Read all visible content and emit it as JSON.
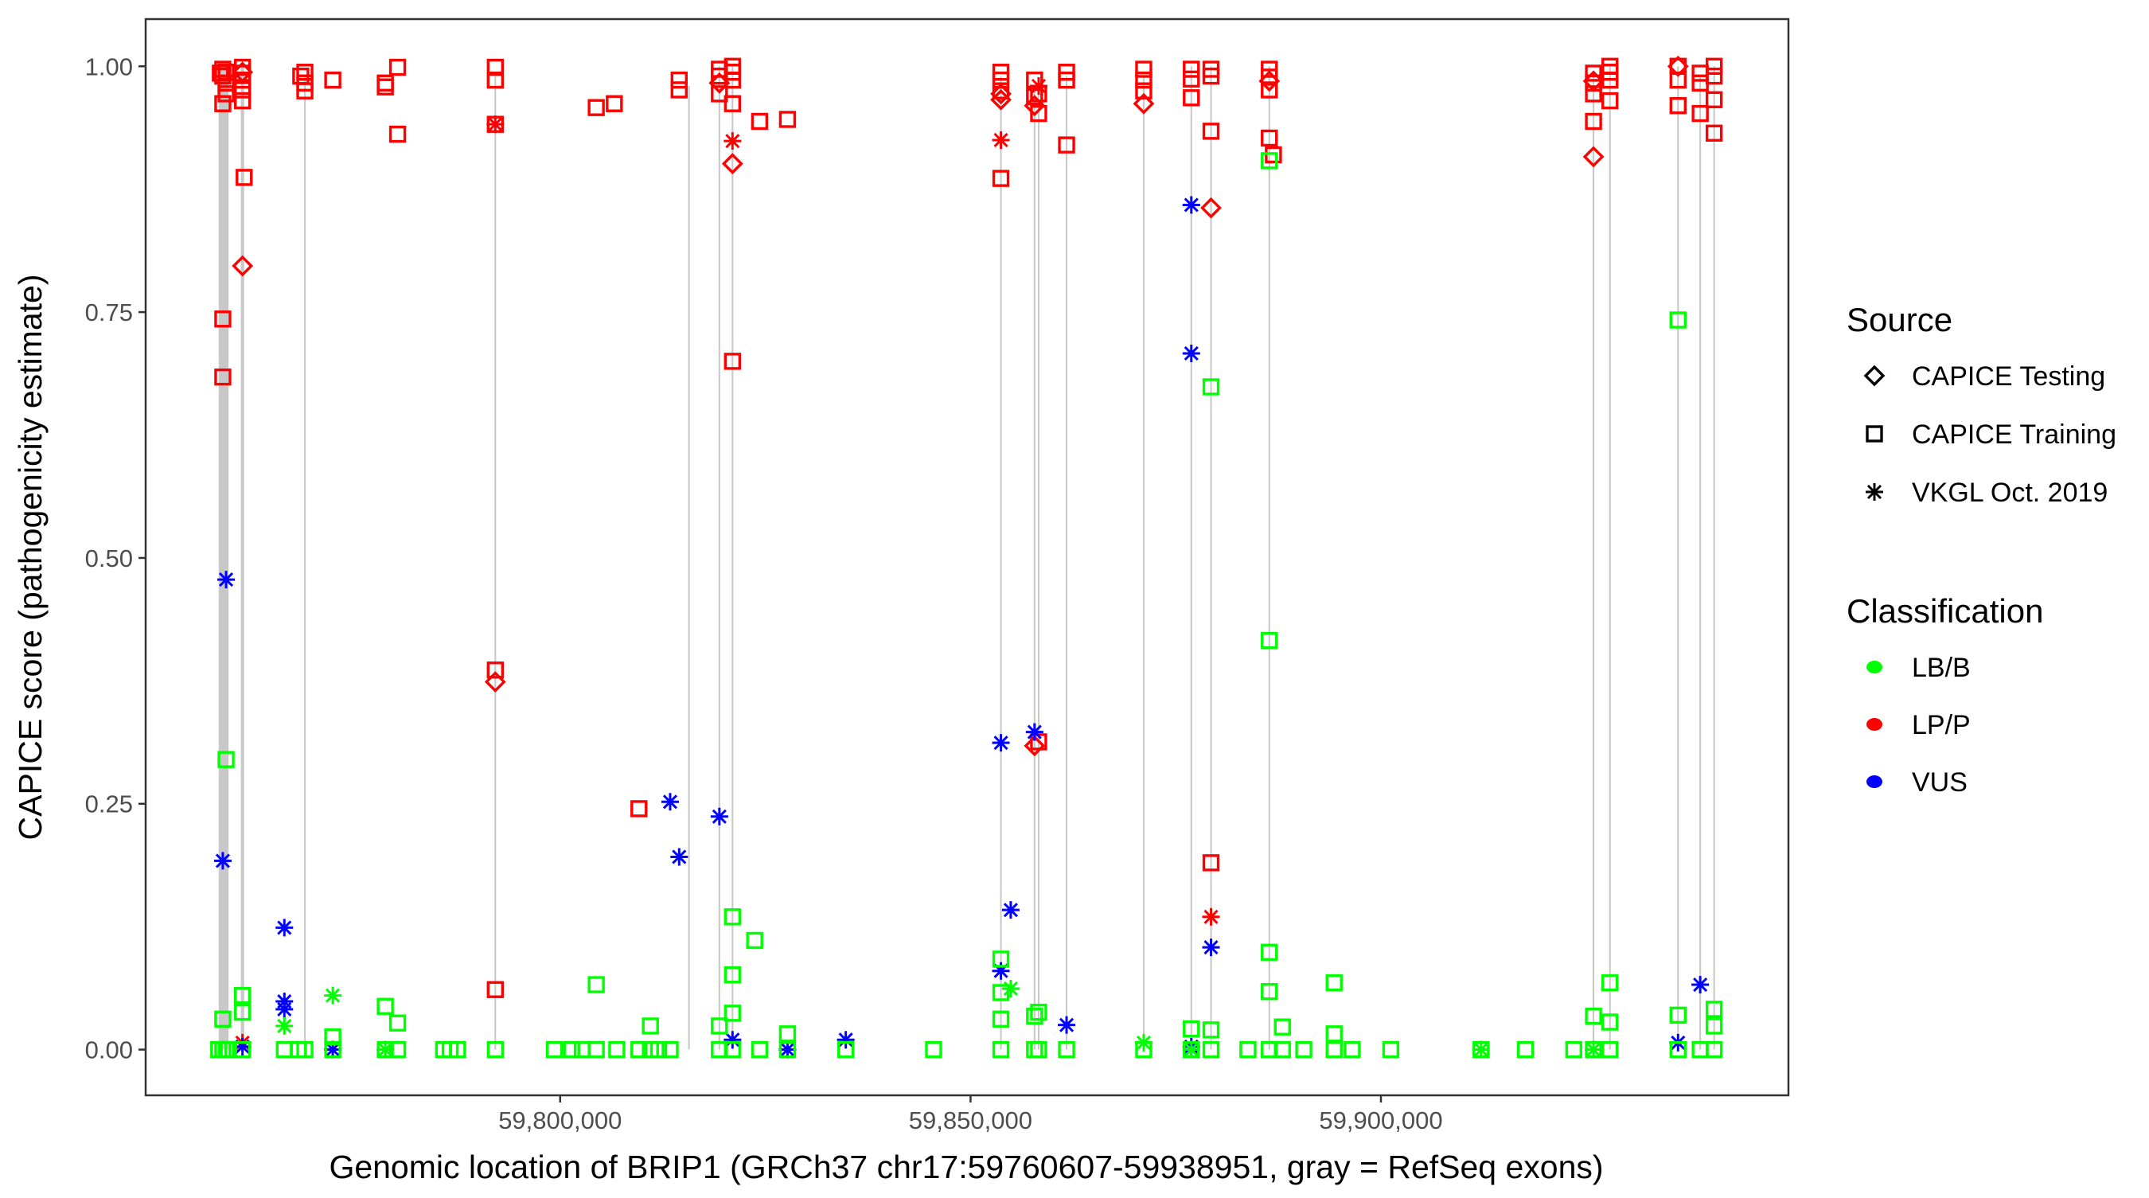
{
  "chart_data": {
    "type": "scatter",
    "title": "",
    "xlabel": "Genomic location of BRIP1 (GRCh37 chr17:59760607-59938951, gray = RefSeq exons)",
    "ylabel": "CAPICE score (pathogenicity estimate)",
    "xlim": [
      59749500,
      59949650
    ],
    "ylim": [
      -0.0465,
      1.048
    ],
    "x_ticks": [
      59800000,
      59850000,
      59900000
    ],
    "x_tick_labels": [
      "59,800,000",
      "59,850,000",
      "59,900,000"
    ],
    "y_ticks": [
      0,
      0.25,
      0.5,
      0.75,
      1.0
    ],
    "y_tick_labels": [
      "0.00",
      "0.25",
      "0.50",
      "0.75",
      "1.00"
    ],
    "grid": false,
    "legend_placement": "right",
    "legend": {
      "source_title": "Source",
      "sources": [
        {
          "label": "CAPICE Testing",
          "shape": "diamond"
        },
        {
          "label": "CAPICE Training",
          "shape": "square"
        },
        {
          "label": "VKGL Oct. 2019",
          "shape": "asterisk"
        }
      ],
      "class_title": "Classification",
      "classes": [
        {
          "label": "LB/B",
          "color": "#00ff00"
        },
        {
          "label": "LP/P",
          "color": "#ff0000"
        },
        {
          "label": "VUS",
          "color": "#0000ff"
        }
      ]
    },
    "exon_color": "#c8c8c8",
    "exons": [
      [
        59758400,
        59759600,
        1.0
      ],
      [
        59761100,
        59761500,
        1.0
      ],
      [
        59768800,
        59769000,
        0.99
      ],
      [
        59792000,
        59792200,
        0.99
      ],
      [
        59815600,
        59815800,
        0.98
      ],
      [
        59819300,
        59819500,
        1.0
      ],
      [
        59820900,
        59821100,
        1.0
      ],
      [
        59853600,
        59853800,
        0.99
      ],
      [
        59857700,
        59857900,
        0.98
      ],
      [
        59858200,
        59858400,
        0.98
      ],
      [
        59861600,
        59861800,
        0.99
      ],
      [
        59871000,
        59871200,
        0.99
      ],
      [
        59876800,
        59877000,
        1.0
      ],
      [
        59879200,
        59879400,
        1.0
      ],
      [
        59886300,
        59886500,
        1.0
      ],
      [
        59925800,
        59926000,
        0.99
      ],
      [
        59927800,
        59928000,
        1.0
      ],
      [
        59936100,
        59936300,
        1.0
      ],
      [
        59938800,
        59939000,
        0.99
      ],
      [
        59940500,
        59940700,
        1.0
      ]
    ],
    "series": [
      {
        "source": 1,
        "class": 1,
        "points": [
          [
            59758900,
            0.997
          ],
          [
            59759300,
            0.994
          ],
          [
            59758900,
            0.99
          ],
          [
            59759300,
            0.983
          ],
          [
            59758600,
            0.993
          ],
          [
            59759300,
            0.972
          ],
          [
            59758900,
            0.962
          ],
          [
            59758900,
            0.743
          ],
          [
            59758900,
            0.684
          ],
          [
            59761300,
            0.999
          ],
          [
            59761300,
            0.993
          ],
          [
            59761300,
            0.986
          ],
          [
            59761300,
            0.976
          ],
          [
            59761300,
            0.965
          ],
          [
            59761500,
            0.887
          ],
          [
            59768900,
            0.994
          ],
          [
            59768900,
            0.983
          ],
          [
            59768900,
            0.975
          ],
          [
            59768400,
            0.99
          ],
          [
            59772300,
            0.986
          ],
          [
            59778700,
            0.983
          ],
          [
            59778700,
            0.979
          ],
          [
            59780200,
            0.931
          ],
          [
            59780200,
            0.999
          ],
          [
            59792100,
            0.999
          ],
          [
            59792100,
            0.986
          ],
          [
            59792100,
            0.941
          ],
          [
            59792100,
            0.386
          ],
          [
            59792100,
            0.061
          ],
          [
            59804400,
            0.958
          ],
          [
            59806600,
            0.962
          ],
          [
            59809600,
            0.245
          ],
          [
            59814500,
            0.986
          ],
          [
            59814500,
            0.976
          ],
          [
            59819400,
            0.997
          ],
          [
            59819400,
            0.99
          ],
          [
            59819400,
            0.972
          ],
          [
            59821000,
            1.0
          ],
          [
            59821000,
            0.994
          ],
          [
            59821000,
            0.986
          ],
          [
            59821000,
            0.962
          ],
          [
            59821000,
            0.7
          ],
          [
            59824300,
            0.944
          ],
          [
            59827700,
            0.946
          ],
          [
            59853700,
            0.994
          ],
          [
            59853700,
            0.986
          ],
          [
            59853700,
            0.975
          ],
          [
            59853700,
            0.886
          ],
          [
            59857800,
            0.986
          ],
          [
            59857800,
            0.969
          ],
          [
            59858300,
            0.952
          ],
          [
            59858300,
            0.972
          ],
          [
            59858300,
            0.313
          ],
          [
            59861700,
            0.994
          ],
          [
            59861700,
            0.986
          ],
          [
            59861700,
            0.92
          ],
          [
            59871100,
            0.997
          ],
          [
            59871100,
            0.986
          ],
          [
            59871100,
            0.975
          ],
          [
            59876900,
            0.997
          ],
          [
            59876900,
            0.987
          ],
          [
            59876900,
            0.968
          ],
          [
            59879300,
            0.997
          ],
          [
            59879300,
            0.99
          ],
          [
            59879300,
            0.934
          ],
          [
            59879300,
            0.19
          ],
          [
            59886400,
            0.997
          ],
          [
            59886400,
            0.989
          ],
          [
            59886400,
            0.976
          ],
          [
            59886400,
            0.927
          ],
          [
            59886900,
            0.91
          ],
          [
            59925900,
            0.993
          ],
          [
            59925900,
            0.983
          ],
          [
            59925900,
            0.972
          ],
          [
            59925900,
            0.944
          ],
          [
            59927900,
            1.0
          ],
          [
            59927900,
            0.994
          ],
          [
            59927900,
            0.986
          ],
          [
            59927900,
            0.965
          ],
          [
            59936200,
            1.0
          ],
          [
            59936200,
            0.986
          ],
          [
            59936200,
            0.96
          ],
          [
            59938900,
            0.993
          ],
          [
            59938900,
            0.983
          ],
          [
            59938900,
            0.952
          ],
          [
            59940600,
            1.0
          ],
          [
            59940600,
            0.99
          ],
          [
            59940600,
            0.966
          ],
          [
            59940600,
            0.932
          ]
        ]
      },
      {
        "source": 0,
        "class": 1,
        "points": [
          [
            59761300,
            0.797
          ],
          [
            59761300,
            0.994
          ],
          [
            59792100,
            0.374
          ],
          [
            59819400,
            0.983
          ],
          [
            59821000,
            0.901
          ],
          [
            59853700,
            0.972
          ],
          [
            59853700,
            0.966
          ],
          [
            59857800,
            0.96
          ],
          [
            59857800,
            0.309
          ],
          [
            59871100,
            0.962
          ],
          [
            59879300,
            0.856
          ],
          [
            59886400,
            0.985
          ],
          [
            59925900,
            0.985
          ],
          [
            59925900,
            0.908
          ],
          [
            59936200,
            1.0
          ]
        ]
      },
      {
        "source": 2,
        "class": 1,
        "points": [
          [
            59761300,
            0.007
          ],
          [
            59792100,
            0.941
          ],
          [
            59821000,
            0.924
          ],
          [
            59853700,
            0.925
          ],
          [
            59858300,
            0.98
          ],
          [
            59879300,
            0.135
          ]
        ]
      },
      {
        "source": 2,
        "class": 2,
        "points": [
          [
            59759300,
            0.478
          ],
          [
            59758900,
            0.192
          ],
          [
            59766400,
            0.124
          ],
          [
            59766400,
            0.049
          ],
          [
            59766400,
            0.041
          ],
          [
            59772300,
            0
          ],
          [
            59813400,
            0.252
          ],
          [
            59814500,
            0.196
          ],
          [
            59819400,
            0.237
          ],
          [
            59821000,
            0.01
          ],
          [
            59827700,
            0
          ],
          [
            59834800,
            0.01
          ],
          [
            59853700,
            0.312
          ],
          [
            59853700,
            0.08
          ],
          [
            59854900,
            0.142
          ],
          [
            59857800,
            0.323
          ],
          [
            59861700,
            0.025
          ],
          [
            59876900,
            0.859
          ],
          [
            59876900,
            0.708
          ],
          [
            59876900,
            0.003
          ],
          [
            59879300,
            0.104
          ],
          [
            59936200,
            0.007
          ],
          [
            59938900,
            0.066
          ],
          [
            59761300,
            0.003
          ]
        ]
      },
      {
        "source": 1,
        "class": 0,
        "points": [
          [
            59758400,
            0
          ],
          [
            59758900,
            0
          ],
          [
            59759300,
            0
          ],
          [
            59759600,
            0
          ],
          [
            59761300,
            0
          ],
          [
            59766400,
            0
          ],
          [
            59768100,
            0
          ],
          [
            59768900,
            0
          ],
          [
            59772300,
            0
          ],
          [
            59778700,
            0
          ],
          [
            59780200,
            0
          ],
          [
            59785800,
            0
          ],
          [
            59786600,
            0
          ],
          [
            59787500,
            0
          ],
          [
            59792100,
            0
          ],
          [
            59799300,
            0
          ],
          [
            59801400,
            0
          ],
          [
            59802700,
            0
          ],
          [
            59804400,
            0
          ],
          [
            59806900,
            0
          ],
          [
            59809600,
            0
          ],
          [
            59811000,
            0
          ],
          [
            59812000,
            0
          ],
          [
            59813400,
            0
          ],
          [
            59819400,
            0
          ],
          [
            59821000,
            0
          ],
          [
            59824300,
            0
          ],
          [
            59827700,
            0
          ],
          [
            59834800,
            0
          ],
          [
            59845500,
            0
          ],
          [
            59853700,
            0
          ],
          [
            59857800,
            0
          ],
          [
            59858300,
            0
          ],
          [
            59861700,
            0
          ],
          [
            59871100,
            0
          ],
          [
            59876900,
            0
          ],
          [
            59879300,
            0
          ],
          [
            59883800,
            0
          ],
          [
            59886400,
            0
          ],
          [
            59888000,
            0
          ],
          [
            59890600,
            0
          ],
          [
            59894300,
            0
          ],
          [
            59896500,
            0
          ],
          [
            59901200,
            0
          ],
          [
            59912200,
            0
          ],
          [
            59917600,
            0
          ],
          [
            59923500,
            0
          ],
          [
            59925900,
            0
          ],
          [
            59927900,
            0
          ],
          [
            59936200,
            0
          ],
          [
            59938900,
            0
          ],
          [
            59940600,
            0
          ],
          [
            59759300,
            0.295
          ],
          [
            59758900,
            0.031
          ],
          [
            59761300,
            0.055
          ],
          [
            59761300,
            0.038
          ],
          [
            59772300,
            0.013
          ],
          [
            59778700,
            0.044
          ],
          [
            59780200,
            0.027
          ],
          [
            59804400,
            0.066
          ],
          [
            59811000,
            0.024
          ],
          [
            59819400,
            0.024
          ],
          [
            59821000,
            0.135
          ],
          [
            59821000,
            0.076
          ],
          [
            59821000,
            0.037
          ],
          [
            59823700,
            0.111
          ],
          [
            59827700,
            0.016
          ],
          [
            59853700,
            0.092
          ],
          [
            59853700,
            0.058
          ],
          [
            59853700,
            0.031
          ],
          [
            59857800,
            0.034
          ],
          [
            59858300,
            0.038
          ],
          [
            59876900,
            0.021
          ],
          [
            59879300,
            0.674
          ],
          [
            59879300,
            0.02
          ],
          [
            59886400,
            0.904
          ],
          [
            59886400,
            0.416
          ],
          [
            59886400,
            0.099
          ],
          [
            59886400,
            0.059
          ],
          [
            59888000,
            0.023
          ],
          [
            59894300,
            0.068
          ],
          [
            59894300,
            0.016
          ],
          [
            59925900,
            0.034
          ],
          [
            59927900,
            0.068
          ],
          [
            59927900,
            0.028
          ],
          [
            59936200,
            0.742
          ],
          [
            59936200,
            0.035
          ],
          [
            59940600,
            0.041
          ],
          [
            59940600,
            0.024
          ]
        ]
      },
      {
        "source": 2,
        "class": 0,
        "points": [
          [
            59772300,
            0.055
          ],
          [
            59766400,
            0.024
          ],
          [
            59778700,
            0
          ],
          [
            59854900,
            0.062
          ],
          [
            59912200,
            0
          ],
          [
            59925900,
            0
          ],
          [
            59871100,
            0.007
          ],
          [
            59876900,
            0
          ]
        ]
      }
    ]
  }
}
